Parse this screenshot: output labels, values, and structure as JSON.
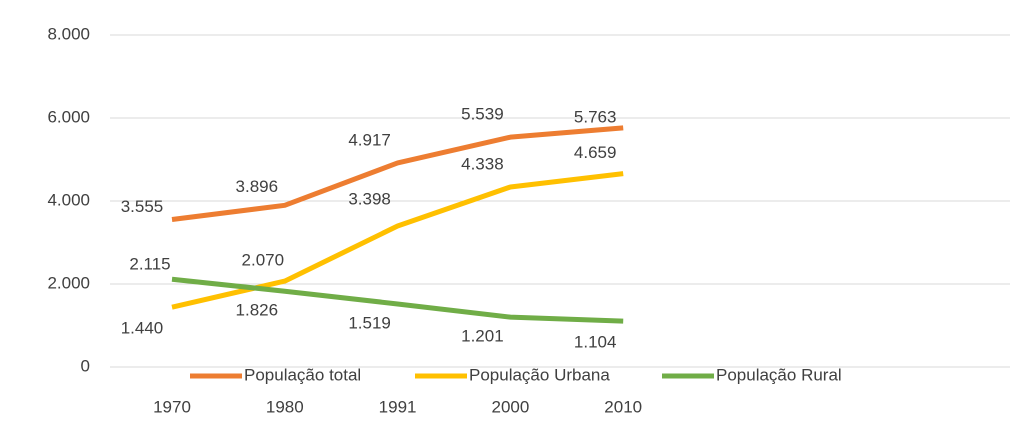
{
  "chart_data": {
    "type": "line",
    "categories": [
      "1970",
      "1980",
      "1991",
      "2000",
      "2010"
    ],
    "series": [
      {
        "name": "População total",
        "color": "#ed7d31",
        "values": [
          3555,
          3896,
          4917,
          5539,
          5763
        ],
        "value_labels": [
          "3.555",
          "3.896",
          "4.917",
          "5.539",
          "5.763"
        ]
      },
      {
        "name": "População Urbana",
        "color": "#ffc000",
        "values": [
          1440,
          2070,
          3398,
          4338,
          4659
        ],
        "value_labels": [
          "1.440",
          "2.070",
          "3.398",
          "4.338",
          "4.659"
        ]
      },
      {
        "name": "População Rural",
        "color": "#70ad47",
        "values": [
          2115,
          1826,
          1519,
          1201,
          1104
        ],
        "value_labels": [
          "2.115",
          "1.826",
          "1.519",
          "1.201",
          "1.104"
        ]
      }
    ],
    "ylim": [
      0,
      8000
    ],
    "yticks": [
      0,
      {
        "value": 2000,
        "label": "2.000"
      },
      {
        "value": 4000,
        "label": "4.000"
      },
      {
        "value": 6000,
        "label": "6.000"
      },
      {
        "value": 8000,
        "label": "8.000"
      }
    ],
    "grid": true,
    "legend": "bottom"
  }
}
